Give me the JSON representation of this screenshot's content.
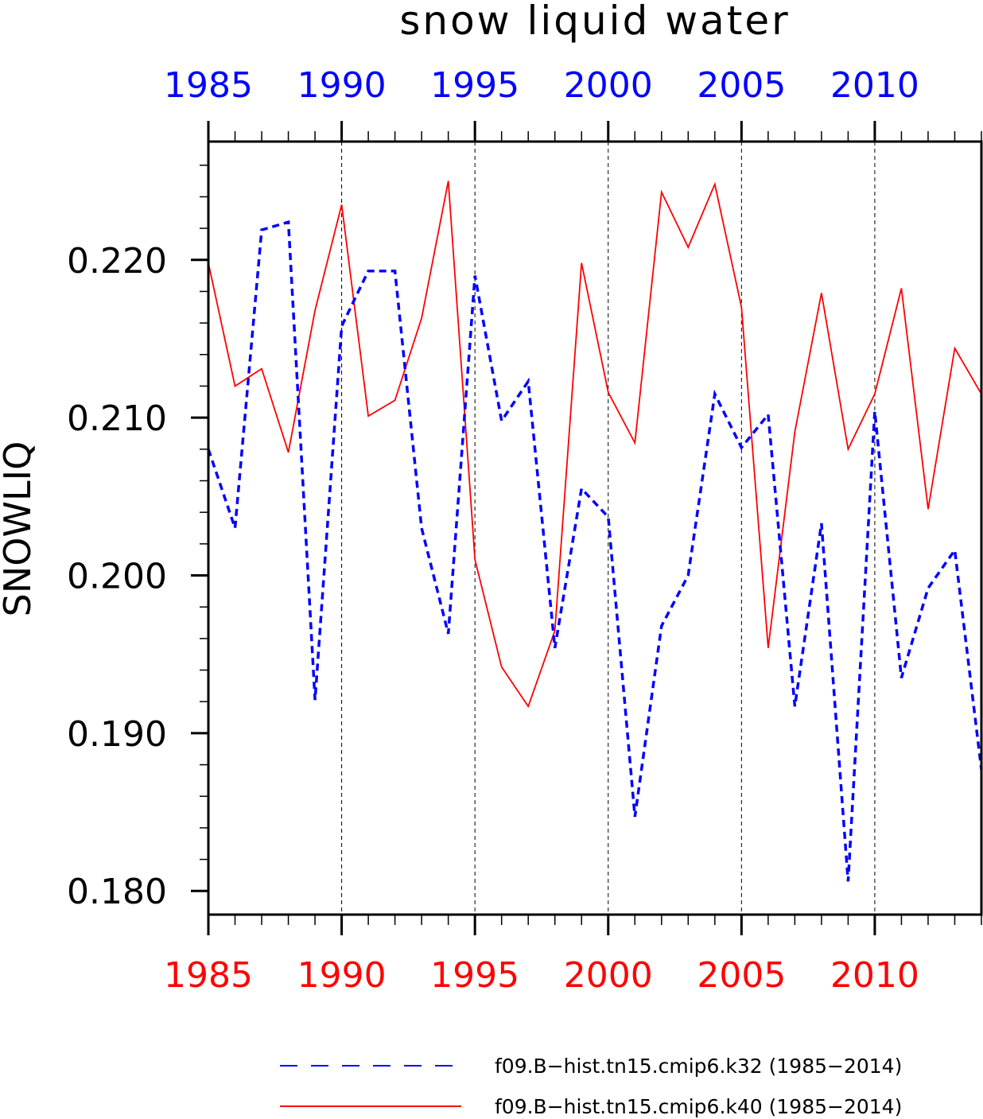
{
  "chart_data": {
    "type": "line",
    "title": "snow liquid water",
    "ylabel": "SNOWLIQ",
    "xlabel": "",
    "xlim": [
      1985,
      2014
    ],
    "ylim": [
      0.1785,
      0.2275
    ],
    "x_ticks": [
      1985,
      1990,
      1995,
      2000,
      2005,
      2010
    ],
    "x_tick_labels": [
      "1985",
      "1990",
      "1995",
      "2000",
      "2005",
      "2010"
    ],
    "y_ticks": [
      0.18,
      0.19,
      0.2,
      0.21,
      0.22
    ],
    "y_tick_labels": [
      "0.180",
      "0.190",
      "0.200",
      "0.210",
      "0.220"
    ],
    "y_minor_step": 0.002,
    "x_minor_step": 1,
    "vertical_gridlines": [
      1990,
      1995,
      2000,
      2005,
      2010
    ],
    "x": [
      1985,
      1986,
      1987,
      1988,
      1989,
      1990,
      1991,
      1992,
      1993,
      1994,
      1995,
      1996,
      1997,
      1998,
      1999,
      2000,
      2001,
      2002,
      2003,
      2004,
      2005,
      2006,
      2007,
      2008,
      2009,
      2010,
      2011,
      2012,
      2013,
      2014
    ],
    "series": [
      {
        "name": "f09.B−hist.tn15.cmip6.k32 (1985−2014)",
        "color": "#0000ff",
        "style": "dashed",
        "values": [
          0.208,
          0.203,
          0.2219,
          0.2224,
          0.1921,
          0.2158,
          0.2193,
          0.2193,
          0.203,
          0.1963,
          0.219,
          0.2098,
          0.2123,
          0.1954,
          0.2055,
          0.2037,
          0.1847,
          0.1968,
          0.2,
          0.2115,
          0.2081,
          0.2102,
          0.1917,
          0.2033,
          0.1806,
          0.2104,
          0.1935,
          0.1992,
          0.2016,
          0.1877
        ]
      },
      {
        "name": "f09.B−hist.tn15.cmip6.k40 (1985−2014)",
        "color": "#ff0000",
        "style": "solid",
        "values": [
          0.2198,
          0.212,
          0.2131,
          0.2078,
          0.2168,
          0.2235,
          0.2101,
          0.2111,
          0.2163,
          0.225,
          0.201,
          0.1942,
          0.1917,
          0.1965,
          0.2198,
          0.2116,
          0.2084,
          0.2243,
          0.2208,
          0.2248,
          0.217,
          0.1954,
          0.2091,
          0.2179,
          0.208,
          0.2115,
          0.2182,
          0.2042,
          0.2144,
          0.2115
        ]
      }
    ],
    "colors": {
      "top_axis": "#0000ff",
      "bottom_axis": "#ff0000"
    },
    "legend_placement": "bottom"
  }
}
